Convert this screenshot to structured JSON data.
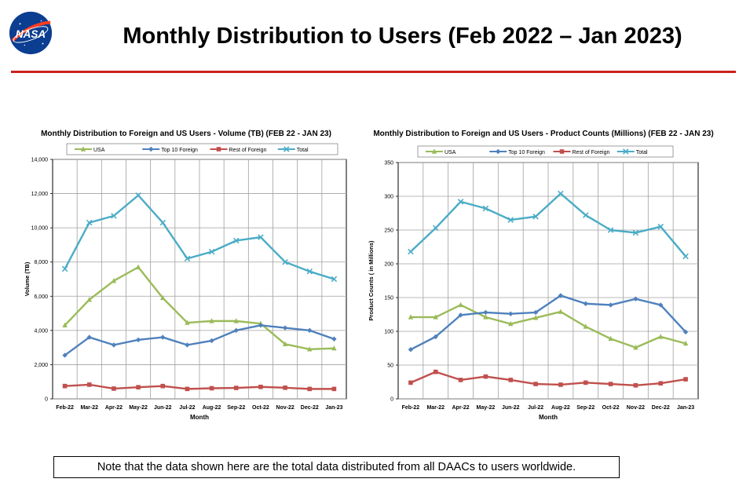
{
  "page": {
    "title": "Monthly Distribution to Users (Feb 2022 – Jan 2023)",
    "logo_text": "NASA",
    "note": "Note that the data shown here are the total data distributed from all DAACs to users worldwide."
  },
  "colors": {
    "title_rule": "#cc1f1f",
    "usa": "#9bbb59",
    "top10": "#4f81bd",
    "rest": "#c0504d",
    "total": "#4bacc6"
  },
  "chart_data": [
    {
      "type": "line",
      "title": "Monthly Distribution to Foreign and US Users - Volume  (TB) (FEB 22 - JAN 23)",
      "xlabel": "Month",
      "ylabel": "Volume (TB)",
      "ylim": [
        0,
        14000
      ],
      "yticks": [
        0,
        2000,
        4000,
        6000,
        8000,
        10000,
        12000,
        14000
      ],
      "ytick_labels": [
        "0",
        "2,000",
        "4,000",
        "6,000",
        "8,000",
        "10,000",
        "12,000",
        "14,000"
      ],
      "grid": true,
      "legend": "top",
      "categories": [
        "Feb-22",
        "Mar-22",
        "Apr-22",
        "May-22",
        "Jun-22",
        "Jul-22",
        "Aug-22",
        "Sep-22",
        "Oct-22",
        "Nov-22",
        "Dec-22",
        "Jan-23"
      ],
      "series": [
        {
          "name": "USA",
          "color": "#9bbb59",
          "marker": "triangle",
          "values": [
            4300,
            5800,
            6900,
            7700,
            5900,
            4450,
            4550,
            4550,
            4400,
            3200,
            2900,
            2950
          ]
        },
        {
          "name": "Top 10 Foreign",
          "color": "#4f81bd",
          "marker": "diamond",
          "values": [
            2550,
            3600,
            3150,
            3450,
            3600,
            3150,
            3400,
            4000,
            4300,
            4150,
            4000,
            3500
          ]
        },
        {
          "name": "Rest of Foreign",
          "color": "#c0504d",
          "marker": "square",
          "values": [
            750,
            830,
            600,
            680,
            750,
            580,
            620,
            640,
            700,
            650,
            580,
            580
          ]
        },
        {
          "name": "Total",
          "color": "#4bacc6",
          "marker": "x",
          "values": [
            7600,
            10300,
            10700,
            11900,
            10300,
            8200,
            8600,
            9250,
            9450,
            8000,
            7450,
            7000
          ]
        }
      ]
    },
    {
      "type": "line",
      "title": "Monthly Distribution to Foreign and US Users - Product Counts (Millions) (FEB 22 - JAN 23)",
      "xlabel": "Month",
      "ylabel": "Product Counts ( in Millions)",
      "ylim": [
        0,
        350
      ],
      "yticks": [
        0,
        50,
        100,
        150,
        200,
        250,
        300,
        350
      ],
      "ytick_labels": [
        "0",
        "50",
        "100",
        "150",
        "200",
        "250",
        "300",
        "350"
      ],
      "grid": true,
      "legend": "top",
      "categories": [
        "Feb-22",
        "Mar-22",
        "Apr-22",
        "May-22",
        "Jun-22",
        "Jul-22",
        "Aug-22",
        "Sep-22",
        "Oct-22",
        "Nov-22",
        "Dec-22",
        "Jan-23"
      ],
      "series": [
        {
          "name": "USA",
          "color": "#9bbb59",
          "marker": "triangle",
          "values": [
            121,
            121,
            139,
            121,
            111,
            120,
            129,
            107,
            89,
            76,
            92,
            82
          ]
        },
        {
          "name": "Top  10 Foreign",
          "color": "#4f81bd",
          "marker": "diamond",
          "values": [
            73,
            92,
            124,
            128,
            126,
            128,
            153,
            141,
            139,
            148,
            139,
            99
          ]
        },
        {
          "name": "Rest of Foreign",
          "color": "#c0504d",
          "marker": "square",
          "values": [
            24,
            40,
            28,
            33,
            28,
            22,
            21,
            24,
            22,
            20,
            23,
            29
          ]
        },
        {
          "name": "Total",
          "color": "#4bacc6",
          "marker": "x",
          "values": [
            218,
            253,
            292,
            282,
            265,
            270,
            304,
            272,
            250,
            246,
            255,
            211
          ]
        }
      ]
    }
  ]
}
